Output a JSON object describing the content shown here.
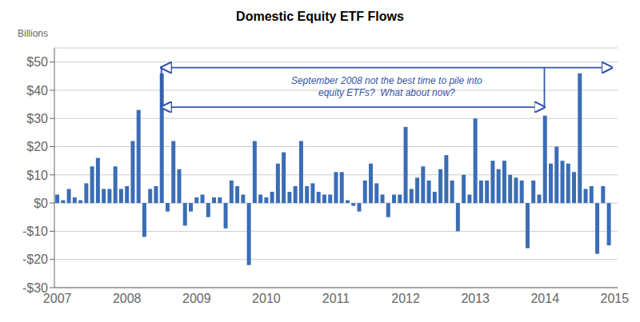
{
  "chart_data": {
    "type": "bar",
    "title": "Domestic Equity ETF Flows",
    "ylabel": "Billions",
    "annotations": [
      "September 2008 not the best time to pile into\nequity ETFs?  What about now?"
    ],
    "categories": [
      "2007",
      null,
      null,
      null,
      null,
      null,
      null,
      null,
      null,
      null,
      null,
      null,
      "2008",
      null,
      null,
      null,
      null,
      null,
      null,
      null,
      null,
      null,
      null,
      null,
      "2009",
      null,
      null,
      null,
      null,
      null,
      null,
      null,
      null,
      null,
      null,
      null,
      "2010",
      null,
      null,
      null,
      null,
      null,
      null,
      null,
      null,
      null,
      null,
      null,
      "2011",
      null,
      null,
      null,
      null,
      null,
      null,
      null,
      null,
      null,
      null,
      null,
      "2012",
      null,
      null,
      null,
      null,
      null,
      null,
      null,
      null,
      null,
      null,
      null,
      "2013",
      null,
      null,
      null,
      null,
      null,
      null,
      null,
      null,
      null,
      null,
      null,
      "2014",
      null,
      null,
      null,
      null,
      null,
      null,
      null,
      null,
      null,
      null,
      null,
      "2015"
    ],
    "values": [
      3,
      1,
      5,
      2,
      1,
      7,
      13,
      16,
      5,
      5,
      13,
      5,
      6,
      22,
      33,
      -12,
      5,
      6,
      46,
      -3,
      22,
      12,
      -8,
      -3,
      2,
      3,
      -5,
      2,
      2,
      -9,
      8,
      6,
      3,
      -22,
      22,
      3,
      2,
      4,
      14,
      18,
      4,
      6,
      22,
      6,
      7,
      4,
      3,
      3,
      11,
      11,
      1,
      -1,
      -3,
      8,
      14,
      7,
      3,
      -5,
      3,
      3,
      27,
      5,
      9,
      13,
      8,
      4,
      12,
      17,
      8,
      -10,
      10,
      3,
      30,
      8,
      8,
      15,
      12,
      15,
      10,
      9,
      8,
      -16,
      8,
      3,
      31,
      14,
      20,
      15,
      14,
      11,
      46,
      5,
      6,
      -18,
      6,
      -15,
      null
    ],
    "color": "#3a6db5",
    "ylim": [
      -30,
      55
    ],
    "yticks": [
      {
        "value": -30,
        "label": "-$30"
      },
      {
        "value": -20,
        "label": "-$20"
      },
      {
        "value": -10,
        "label": "-$10"
      },
      {
        "value": 0,
        "label": "$0"
      },
      {
        "value": 10,
        "label": "$10"
      },
      {
        "value": 20,
        "label": "$20"
      },
      {
        "value": 30,
        "label": "$30"
      },
      {
        "value": 40,
        "label": "$40"
      },
      {
        "value": 50,
        "label": "$50"
      }
    ],
    "grid": true
  }
}
